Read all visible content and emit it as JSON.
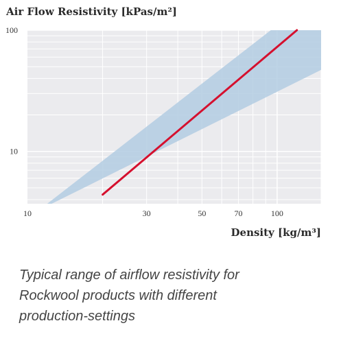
{
  "chart_data": {
    "type": "line",
    "title": "Air Flow Resistivity [kPas/m²]",
    "xlabel": "Density [kg/m³]",
    "ylabel": "",
    "x_scale": "log",
    "y_scale": "log",
    "xlim": [
      10,
      150
    ],
    "ylim": [
      3.7,
      100
    ],
    "x_tick_labels": [
      "10",
      "30",
      "50",
      "70",
      "100"
    ],
    "y_tick_labels": [
      "10",
      "100"
    ],
    "grid": true,
    "series": [
      {
        "x": [
          20,
          120
        ],
        "y": [
          4.4,
          100
        ],
        "color": "#d5102e"
      }
    ],
    "band": {
      "lower": {
        "x": [
          12.5,
          150
        ],
        "y": [
          3.7,
          47
        ]
      },
      "upper": {
        "x": [
          12,
          150
        ],
        "y": [
          3.7,
          210
        ]
      },
      "color": "#b3cde2"
    },
    "colors": {
      "plot_background": "#ebebee",
      "grid": "#ffffff",
      "line": "#d5102e",
      "band": "#b3cde2"
    }
  },
  "caption": {
    "line1": "Typical range of airflow resistivity for",
    "line2": "Rockwool products with different",
    "line3": "production-settings"
  }
}
